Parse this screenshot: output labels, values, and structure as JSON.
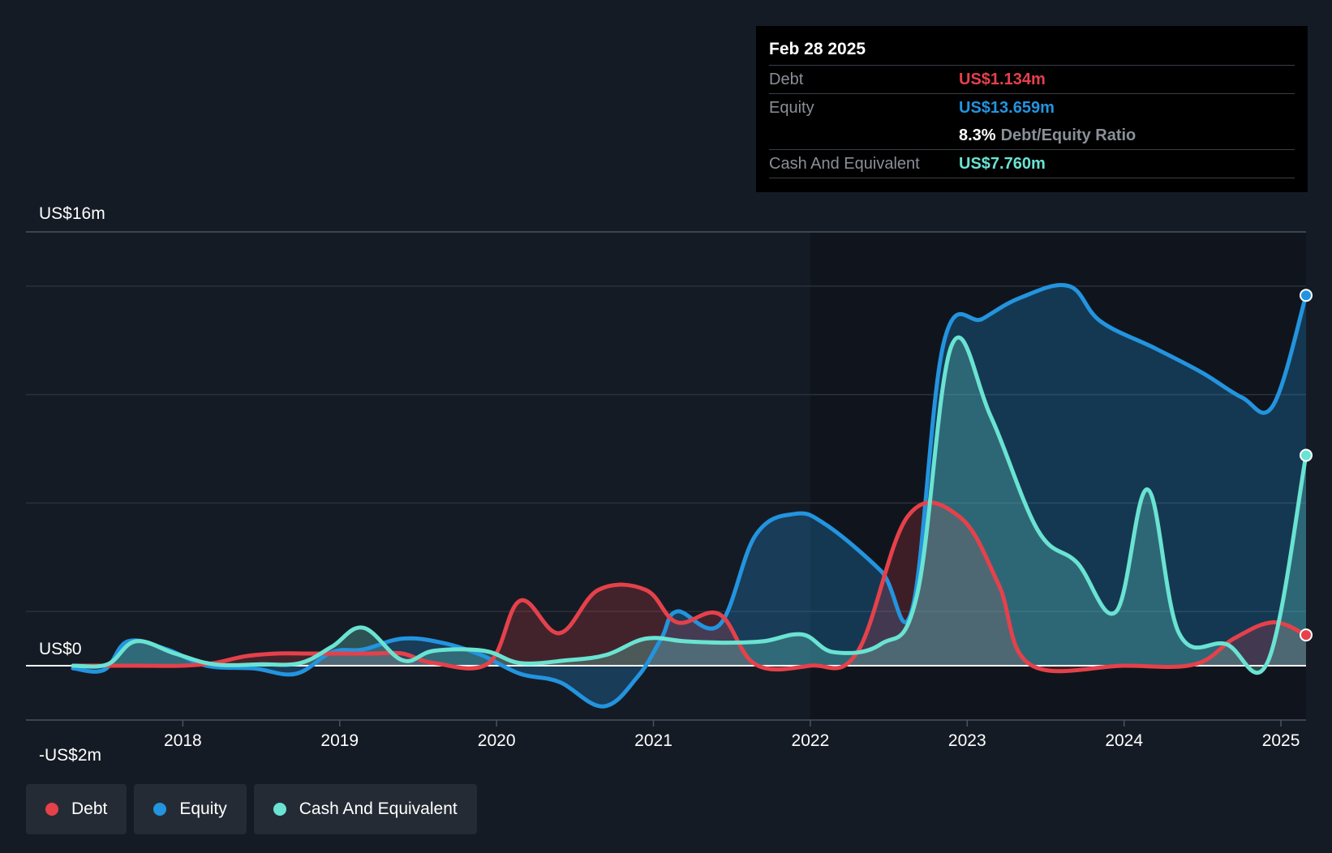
{
  "colors": {
    "background": "#151b24",
    "debt": "#e5414b",
    "equity": "#2394df",
    "cash": "#6ae3d2"
  },
  "tooltip": {
    "date": "Feb 28 2025",
    "debt_label": "Debt",
    "debt_value": "US$1.134m",
    "equity_label": "Equity",
    "equity_value": "US$13.659m",
    "ratio_value": "8.3%",
    "ratio_label": "Debt/Equity Ratio",
    "cash_label": "Cash And Equivalent",
    "cash_value": "US$7.760m"
  },
  "legend": [
    {
      "label": "Debt",
      "color": "#e5414b"
    },
    {
      "label": "Equity",
      "color": "#2394df"
    },
    {
      "label": "Cash And Equivalent",
      "color": "#6ae3d2"
    }
  ],
  "chart_data": {
    "type": "area",
    "title": "",
    "xlabel": "",
    "ylabel": "",
    "ylim": [
      -2,
      16
    ],
    "y_tick_labels": [
      {
        "value": 16,
        "label": "US$16m"
      },
      {
        "value": 0,
        "label": "US$0"
      },
      {
        "value": -2,
        "label": "-US$2m"
      }
    ],
    "x_ticks": [
      2018,
      2019,
      2020,
      2021,
      2022,
      2023,
      2024,
      2025
    ],
    "grid": true,
    "legend_position": "bottom-left",
    "series": [
      {
        "name": "Debt",
        "color": "#e5414b",
        "points": [
          [
            2017.3,
            0.0
          ],
          [
            2017.7,
            0.0
          ],
          [
            2018.0,
            0.0
          ],
          [
            2018.2,
            0.1
          ],
          [
            2018.4,
            0.35
          ],
          [
            2018.6,
            0.45
          ],
          [
            2018.8,
            0.45
          ],
          [
            2019.0,
            0.45
          ],
          [
            2019.2,
            0.45
          ],
          [
            2019.4,
            0.45
          ],
          [
            2019.6,
            0.1
          ],
          [
            2019.95,
            0.1
          ],
          [
            2020.15,
            2.4
          ],
          [
            2020.4,
            1.2
          ],
          [
            2020.65,
            2.8
          ],
          [
            2020.95,
            2.8
          ],
          [
            2021.15,
            1.6
          ],
          [
            2021.42,
            1.9
          ],
          [
            2021.65,
            0.05
          ],
          [
            2022.0,
            0.0
          ],
          [
            2022.3,
            0.5
          ],
          [
            2022.62,
            5.5
          ],
          [
            2022.95,
            5.5
          ],
          [
            2023.2,
            3.0
          ],
          [
            2023.4,
            0.05
          ],
          [
            2024.0,
            0.0
          ],
          [
            2024.45,
            0.05
          ],
          [
            2024.7,
            1.0
          ],
          [
            2024.95,
            1.6
          ],
          [
            2025.16,
            1.134
          ]
        ]
      },
      {
        "name": "Equity",
        "color": "#2394df",
        "points": [
          [
            2017.3,
            -0.1
          ],
          [
            2017.5,
            -0.15
          ],
          [
            2017.65,
            0.9
          ],
          [
            2017.9,
            0.6
          ],
          [
            2018.15,
            0.0
          ],
          [
            2018.45,
            -0.1
          ],
          [
            2018.72,
            -0.3
          ],
          [
            2018.95,
            0.5
          ],
          [
            2019.15,
            0.6
          ],
          [
            2019.4,
            1.0
          ],
          [
            2019.65,
            0.85
          ],
          [
            2019.9,
            0.4
          ],
          [
            2020.15,
            -0.3
          ],
          [
            2020.4,
            -0.6
          ],
          [
            2020.68,
            -1.5
          ],
          [
            2020.9,
            -0.4
          ],
          [
            2021.05,
            1.0
          ],
          [
            2021.15,
            2.0
          ],
          [
            2021.42,
            1.5
          ],
          [
            2021.65,
            4.8
          ],
          [
            2021.9,
            5.6
          ],
          [
            2022.1,
            5.2
          ],
          [
            2022.45,
            3.5
          ],
          [
            2022.65,
            2.1
          ],
          [
            2022.85,
            11.9
          ],
          [
            2023.1,
            12.8
          ],
          [
            2023.35,
            13.6
          ],
          [
            2023.65,
            14.0
          ],
          [
            2023.85,
            12.7
          ],
          [
            2024.2,
            11.7
          ],
          [
            2024.5,
            10.8
          ],
          [
            2024.75,
            9.9
          ],
          [
            2024.95,
            9.6
          ],
          [
            2025.16,
            13.659
          ]
        ]
      },
      {
        "name": "Cash And Equivalent",
        "color": "#6ae3d2",
        "points": [
          [
            2017.3,
            0.0
          ],
          [
            2017.52,
            0.05
          ],
          [
            2017.7,
            0.9
          ],
          [
            2017.95,
            0.45
          ],
          [
            2018.2,
            0.05
          ],
          [
            2018.5,
            0.05
          ],
          [
            2018.75,
            0.1
          ],
          [
            2018.95,
            0.7
          ],
          [
            2019.15,
            1.4
          ],
          [
            2019.4,
            0.2
          ],
          [
            2019.6,
            0.55
          ],
          [
            2019.92,
            0.55
          ],
          [
            2020.15,
            0.1
          ],
          [
            2020.45,
            0.2
          ],
          [
            2020.7,
            0.4
          ],
          [
            2020.95,
            1.0
          ],
          [
            2021.2,
            0.9
          ],
          [
            2021.45,
            0.85
          ],
          [
            2021.7,
            0.9
          ],
          [
            2021.95,
            1.15
          ],
          [
            2022.15,
            0.5
          ],
          [
            2022.45,
            0.8
          ],
          [
            2022.68,
            2.6
          ],
          [
            2022.9,
            11.8
          ],
          [
            2023.15,
            9.2
          ],
          [
            2023.45,
            5.0
          ],
          [
            2023.7,
            3.8
          ],
          [
            2023.95,
            2.0
          ],
          [
            2024.15,
            6.5
          ],
          [
            2024.35,
            1.2
          ],
          [
            2024.65,
            0.8
          ],
          [
            2024.92,
            0.2
          ],
          [
            2025.16,
            7.76
          ]
        ]
      }
    ]
  }
}
